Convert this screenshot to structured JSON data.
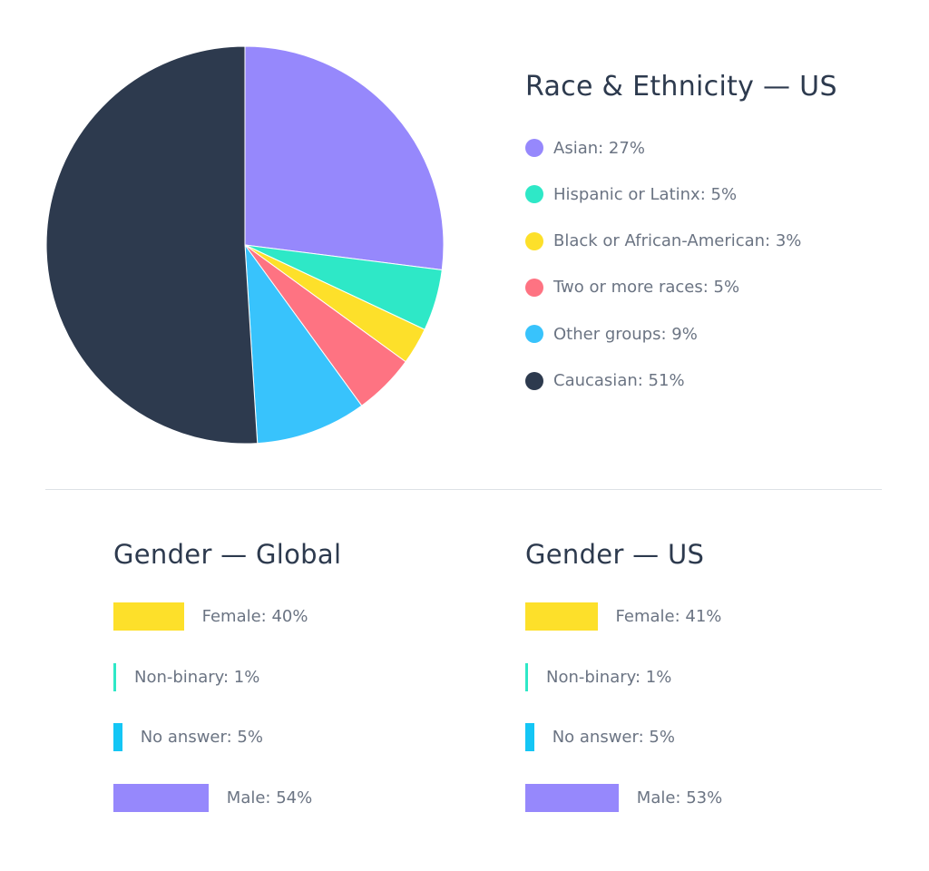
{
  "chart_data": [
    {
      "type": "pie",
      "title": "Race & Ethnicity — US",
      "slices": [
        {
          "label": "Asian: 27%",
          "value": 27,
          "color": "#9688fc"
        },
        {
          "label": "Hispanic or Latinx: 5%",
          "value": 5,
          "color": "#2ee8c7"
        },
        {
          "label": "Black or African-American: 3%",
          "value": 3,
          "color": "#fde02a"
        },
        {
          "label": "Two or more races: 5%",
          "value": 5,
          "color": "#fe7382"
        },
        {
          "label": "Other groups: 9%",
          "value": 9,
          "color": "#38c3fc"
        },
        {
          "label": "Caucasian: 51%",
          "value": 51,
          "color": "#2d3a4e"
        }
      ]
    },
    {
      "type": "bar",
      "title": "Gender — Global",
      "bars": [
        {
          "label": "Female: 40%",
          "value": 40,
          "color": "#fde02a"
        },
        {
          "label": "Non-binary: 1%",
          "value": 1,
          "color": "#2ee8c7"
        },
        {
          "label": "No answer: 5%",
          "value": 5,
          "color": "#14c6f5"
        },
        {
          "label": "Male: 54%",
          "value": 54,
          "color": "#9688fc"
        }
      ]
    },
    {
      "type": "bar",
      "title": "Gender — US",
      "bars": [
        {
          "label": "Female: 41%",
          "value": 41,
          "color": "#fde02a"
        },
        {
          "label": "Non-binary: 1%",
          "value": 1,
          "color": "#2ee8c7"
        },
        {
          "label": "No answer: 5%",
          "value": 5,
          "color": "#14c6f5"
        },
        {
          "label": "Male: 53%",
          "value": 53,
          "color": "#9688fc"
        }
      ]
    }
  ]
}
